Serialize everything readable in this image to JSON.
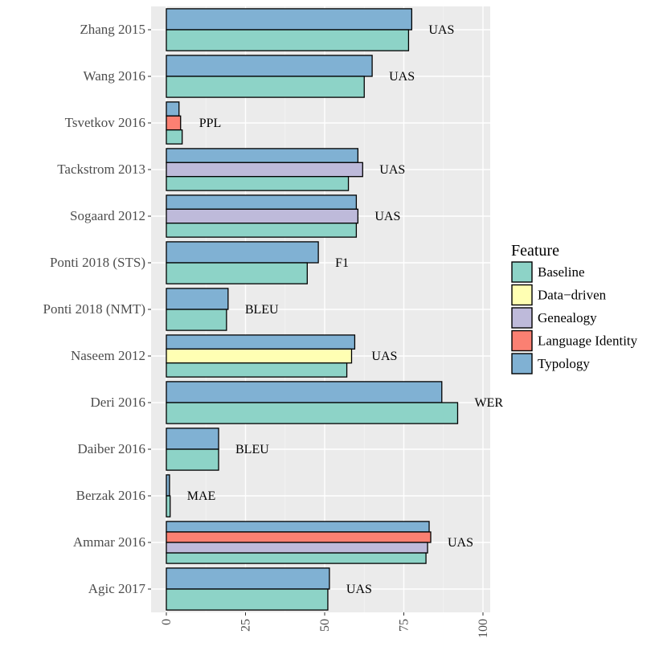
{
  "chart_data": {
    "type": "bar",
    "orientation": "horizontal",
    "x_ticks": [
      0,
      25,
      50,
      75,
      100
    ],
    "xlim": [
      0,
      100
    ],
    "grid": true,
    "legend_title": "Feature",
    "legend_position": "right",
    "features": [
      {
        "name": "Baseline",
        "color": "#8dd3c7"
      },
      {
        "name": "Data−driven",
        "color": "#ffffb3"
      },
      {
        "name": "Genealogy",
        "color": "#bebada"
      },
      {
        "name": "Language Identity",
        "color": "#fb8072"
      },
      {
        "name": "Typology",
        "color": "#80b1d3"
      }
    ],
    "categories": [
      {
        "label": "Zhang 2015",
        "metric": "UAS",
        "bars": [
          {
            "feature": "Typology",
            "value": 77.5
          },
          {
            "feature": "Baseline",
            "value": 76.5
          }
        ]
      },
      {
        "label": "Wang 2016",
        "metric": "UAS",
        "bars": [
          {
            "feature": "Typology",
            "value": 65
          },
          {
            "feature": "Baseline",
            "value": 62.5
          }
        ]
      },
      {
        "label": "Tsvetkov 2016",
        "metric": "PPL",
        "bars": [
          {
            "feature": "Typology",
            "value": 4
          },
          {
            "feature": "Language Identity",
            "value": 4.5
          },
          {
            "feature": "Baseline",
            "value": 5
          }
        ]
      },
      {
        "label": "Tackstrom 2013",
        "metric": "UAS",
        "bars": [
          {
            "feature": "Typology",
            "value": 60.5
          },
          {
            "feature": "Genealogy",
            "value": 62
          },
          {
            "feature": "Baseline",
            "value": 57.5
          }
        ]
      },
      {
        "label": "Sogaard 2012",
        "metric": "UAS",
        "bars": [
          {
            "feature": "Typology",
            "value": 60
          },
          {
            "feature": "Genealogy",
            "value": 60.5
          },
          {
            "feature": "Baseline",
            "value": 60
          }
        ]
      },
      {
        "label": "Ponti 2018 (STS)",
        "metric": "F1",
        "bars": [
          {
            "feature": "Typology",
            "value": 48
          },
          {
            "feature": "Baseline",
            "value": 44.5
          }
        ]
      },
      {
        "label": "Ponti 2018 (NMT)",
        "metric": "BLEU",
        "bars": [
          {
            "feature": "Typology",
            "value": 19.5
          },
          {
            "feature": "Baseline",
            "value": 19
          }
        ]
      },
      {
        "label": "Naseem 2012",
        "metric": "UAS",
        "bars": [
          {
            "feature": "Typology",
            "value": 59.5
          },
          {
            "feature": "Data−driven",
            "value": 58.5
          },
          {
            "feature": "Baseline",
            "value": 57
          }
        ]
      },
      {
        "label": "Deri 2016",
        "metric": "WER",
        "bars": [
          {
            "feature": "Typology",
            "value": 87
          },
          {
            "feature": "Baseline",
            "value": 92
          }
        ]
      },
      {
        "label": "Daiber 2016",
        "metric": "BLEU",
        "bars": [
          {
            "feature": "Typology",
            "value": 16.5
          },
          {
            "feature": "Baseline",
            "value": 16.5
          }
        ]
      },
      {
        "label": "Berzak 2016",
        "metric": "MAE",
        "bars": [
          {
            "feature": "Typology",
            "value": 1
          },
          {
            "feature": "Baseline",
            "value": 1.2
          }
        ]
      },
      {
        "label": "Ammar 2016",
        "metric": "UAS",
        "bars": [
          {
            "feature": "Typology",
            "value": 83
          },
          {
            "feature": "Language Identity",
            "value": 83.5
          },
          {
            "feature": "Genealogy",
            "value": 82.5
          },
          {
            "feature": "Baseline",
            "value": 82
          }
        ]
      },
      {
        "label": "Agic 2017",
        "metric": "UAS",
        "bars": [
          {
            "feature": "Typology",
            "value": 51.5
          },
          {
            "feature": "Baseline",
            "value": 51
          }
        ]
      }
    ]
  }
}
